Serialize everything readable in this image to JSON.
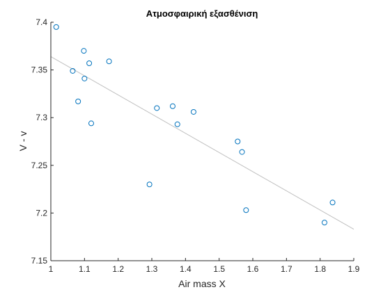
{
  "chart_data": {
    "type": "scatter",
    "title": "Ατμοσφαιρική εξασθένιση",
    "xlabel": "Air mass X",
    "ylabel": "V - v",
    "xlim": [
      1,
      1.9
    ],
    "ylim": [
      7.15,
      7.4
    ],
    "x_ticks": [
      "1",
      "1.1",
      "1.2",
      "1.3",
      "1.4",
      "1.5",
      "1.6",
      "1.7",
      "1.8",
      "1.9"
    ],
    "y_ticks": [
      "7.15",
      "7.2",
      "7.25",
      "7.3",
      "7.35",
      "7.4"
    ],
    "grid": false,
    "marker": "open-circle",
    "series": [
      {
        "points": [
          [
            1.016,
            7.395
          ],
          [
            1.065,
            7.349
          ],
          [
            1.081,
            7.317
          ],
          [
            1.098,
            7.37
          ],
          [
            1.1,
            7.341
          ],
          [
            1.114,
            7.357
          ],
          [
            1.12,
            7.294
          ],
          [
            1.173,
            7.359
          ],
          [
            1.293,
            7.23
          ],
          [
            1.315,
            7.31
          ],
          [
            1.362,
            7.312
          ],
          [
            1.376,
            7.293
          ],
          [
            1.424,
            7.306
          ],
          [
            1.555,
            7.275
          ],
          [
            1.568,
            7.264
          ],
          [
            1.58,
            7.203
          ],
          [
            1.813,
            7.19
          ],
          [
            1.837,
            7.211
          ]
        ]
      }
    ],
    "fit_line": {
      "x": [
        1.0,
        1.9
      ],
      "y": [
        7.364,
        7.183
      ]
    },
    "colors": {
      "marker": "#0072BD",
      "fit": "#bfbfbf",
      "axis": "#262626"
    }
  }
}
